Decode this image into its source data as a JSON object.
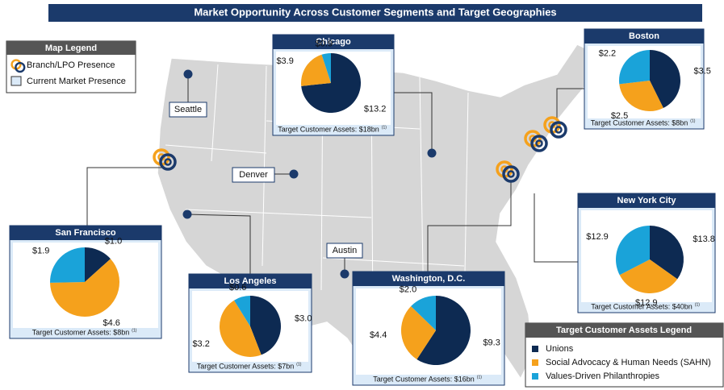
{
  "title": "Market Opportunity Across Customer Segments and Target Geographies",
  "map_legend": {
    "title": "Map Legend",
    "items": [
      "Branch/LPO Presence",
      "Current Market Presence"
    ]
  },
  "assets_legend": {
    "title": "Target Customer Assets Legend",
    "items": [
      {
        "name": "Unions",
        "color": "#0d2a52"
      },
      {
        "name": "Social Advocacy & Human Needs (SAHN)",
        "color": "#f5a11c"
      },
      {
        "name": "Values-Driven Philanthropies",
        "color": "#1aa3d9"
      }
    ]
  },
  "markets": [
    "Seattle",
    "Denver",
    "Austin"
  ],
  "cities": [
    {
      "name": "Chicago",
      "values": [
        13.2,
        3.9,
        0.9
      ],
      "value_labels": [
        "$13.2",
        "$3.9",
        "$0.9"
      ],
      "footer": "Target Customer Assets: $18bn",
      "footnote": "(1)"
    },
    {
      "name": "Boston",
      "values": [
        3.5,
        2.5,
        2.2
      ],
      "value_labels": [
        "$3.5",
        "$2.5",
        "$2.2"
      ],
      "footer": "Target Customer Assets: $8bn",
      "footnote": "(1)"
    },
    {
      "name": "San Francisco",
      "values": [
        1.0,
        4.6,
        1.9
      ],
      "value_labels": [
        "$1.0",
        "$4.6",
        "$1.9"
      ],
      "footer": "Target Customer Assets: $8bn",
      "footnote": "(1)"
    },
    {
      "name": "Los Angeles",
      "values": [
        3.0,
        3.2,
        0.6
      ],
      "value_labels": [
        "$3.0",
        "$3.2",
        "$0.6"
      ],
      "footer": "Target Customer Assets: $7bn",
      "footnote": "(1)"
    },
    {
      "name": "Washington, D.C.",
      "values": [
        9.3,
        4.4,
        2.0
      ],
      "value_labels": [
        "$9.3",
        "$4.4",
        "$2.0"
      ],
      "footer": "Target Customer Assets: $16bn",
      "footnote": "(1)"
    },
    {
      "name": "New York City",
      "values": [
        13.8,
        12.9,
        12.9
      ],
      "value_labels": [
        "$13.8",
        "$12.9",
        "$12.9"
      ],
      "footer": "Target Customer Assets: $40bn",
      "footnote": "(1)"
    }
  ]
}
